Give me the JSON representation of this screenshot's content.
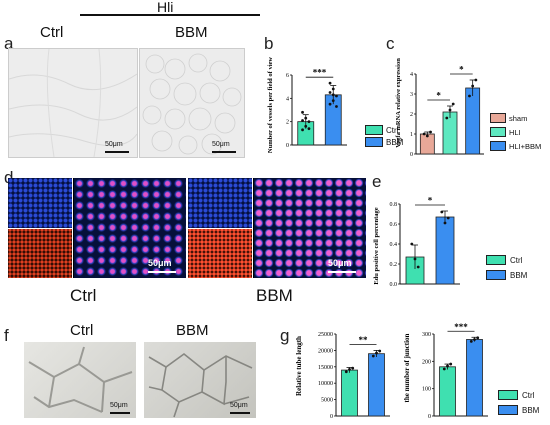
{
  "panel_letters": {
    "a": "a",
    "b": "b",
    "c": "c",
    "d": "d",
    "e": "e",
    "f": "f",
    "g": "g"
  },
  "panel_a": {
    "group_title": "Hli",
    "labels": [
      "Ctrl",
      "BBM"
    ],
    "scale": "50μm"
  },
  "panel_d": {
    "labels": [
      "Ctrl",
      "BBM"
    ],
    "scale": "50μm"
  },
  "panel_f": {
    "labels": [
      "Ctrl",
      "BBM"
    ],
    "scale": "50μm"
  },
  "colors": {
    "ctrl": "#3fe0b0",
    "bbm": "#3a8ef0",
    "sham": "#e8a898",
    "hli": "#5ee8c0",
    "hli_bbm": "#3a8ef0"
  },
  "chart_data": [
    {
      "id": "b",
      "type": "bar",
      "categories": [
        "Ctrl",
        "BBM"
      ],
      "values": [
        2.0,
        4.3
      ],
      "errors": [
        0.6,
        0.8
      ],
      "points": [
        [
          1.3,
          1.6,
          2.0,
          2.1,
          2.3,
          1.4,
          2.8
        ],
        [
          3.5,
          3.8,
          4.2,
          4.5,
          4.8,
          3.3,
          5.3,
          4.3
        ]
      ],
      "ylabel": "Number of vessels per field of view",
      "yticks": [
        0,
        2,
        4,
        6
      ],
      "ylim": [
        0,
        6
      ],
      "significance": "***",
      "legend": [
        "Ctrl",
        "BBM"
      ]
    },
    {
      "id": "c",
      "type": "bar",
      "categories": [
        "sham",
        "HLI",
        "HLI+BBM"
      ],
      "values": [
        1.0,
        2.1,
        3.3
      ],
      "errors": [
        0.1,
        0.3,
        0.4
      ],
      "points": [
        [
          1.0,
          0.9,
          1.1
        ],
        [
          1.8,
          2.2,
          2.5
        ],
        [
          2.9,
          3.4,
          3.7
        ]
      ],
      "ylabel": "Vegfa mRNA relative expression",
      "yticks": [
        0,
        1,
        2,
        3,
        4
      ],
      "ylim": [
        0,
        4
      ],
      "significance": [
        "*",
        "*"
      ],
      "legend": [
        "sham",
        "HLI",
        "HLI+BBM"
      ]
    },
    {
      "id": "e",
      "type": "bar",
      "categories": [
        "Ctrl",
        "BBM"
      ],
      "values": [
        0.27,
        0.67
      ],
      "errors": [
        0.12,
        0.06
      ],
      "points": [
        [
          0.4,
          0.25,
          0.17
        ],
        [
          0.72,
          0.61,
          0.66
        ]
      ],
      "ylabel": "Edu positive cell percentage",
      "yticks": [
        "0.0",
        "0.2",
        "0.4",
        "0.6",
        "0.8"
      ],
      "ylim": [
        0,
        0.8
      ],
      "significance": "*",
      "legend": [
        "Ctrl",
        "BBM"
      ]
    },
    {
      "id": "g1",
      "type": "bar",
      "categories": [
        "Ctrl",
        "BBM"
      ],
      "values": [
        14000,
        19000
      ],
      "errors": [
        800,
        1000
      ],
      "points": [
        [
          13500,
          14200,
          14600
        ],
        [
          18300,
          19200,
          19800
        ]
      ],
      "ylabel": "Relative tube length",
      "yticks": [
        "0",
        "5000",
        "10000",
        "15000",
        "20000",
        "25000"
      ],
      "ylim": [
        0,
        25000
      ],
      "significance": "**"
    },
    {
      "id": "g2",
      "type": "bar",
      "categories": [
        "Ctrl",
        "BBM"
      ],
      "values": [
        180,
        280
      ],
      "errors": [
        10,
        8
      ],
      "points": [
        [
          172,
          183,
          190
        ],
        [
          273,
          280,
          286
        ]
      ],
      "ylabel": "the number of junction",
      "yticks": [
        "0",
        "100",
        "200",
        "300"
      ],
      "ylim": [
        0,
        300
      ],
      "significance": "***",
      "legend": [
        "Ctrl",
        "BBM"
      ]
    }
  ]
}
